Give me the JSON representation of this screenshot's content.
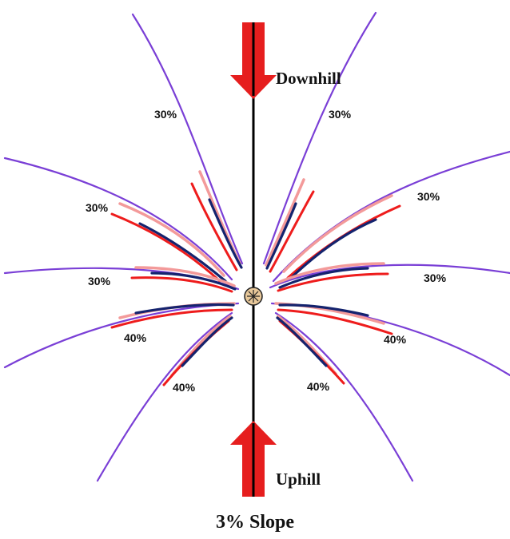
{
  "colors": {
    "outer_line": "#7a3fd6",
    "outer_line_tip": "#5b5cf0",
    "red_line": "#ee1c1c",
    "pink_line": "#f39a9a",
    "navy_line": "#14236e",
    "arrow_fill": "#e61e1e",
    "arrow_dark": "#a50f0f",
    "axis": "#000000",
    "sprinkler_fill": "#e8c89a"
  },
  "labels": {
    "downhill": "Downhill",
    "uphill": "Uphill",
    "caption": "3% Slope"
  },
  "percent_labels": {
    "upper_left": "30%",
    "upper_right": "30%",
    "mid_upper_left": "30%",
    "mid_upper_right": "30%",
    "mid_left": "30%",
    "mid_right": "30%",
    "lower_left": "40%",
    "lower_right": "40%",
    "bottom_left": "40%",
    "bottom_right": "40%"
  }
}
